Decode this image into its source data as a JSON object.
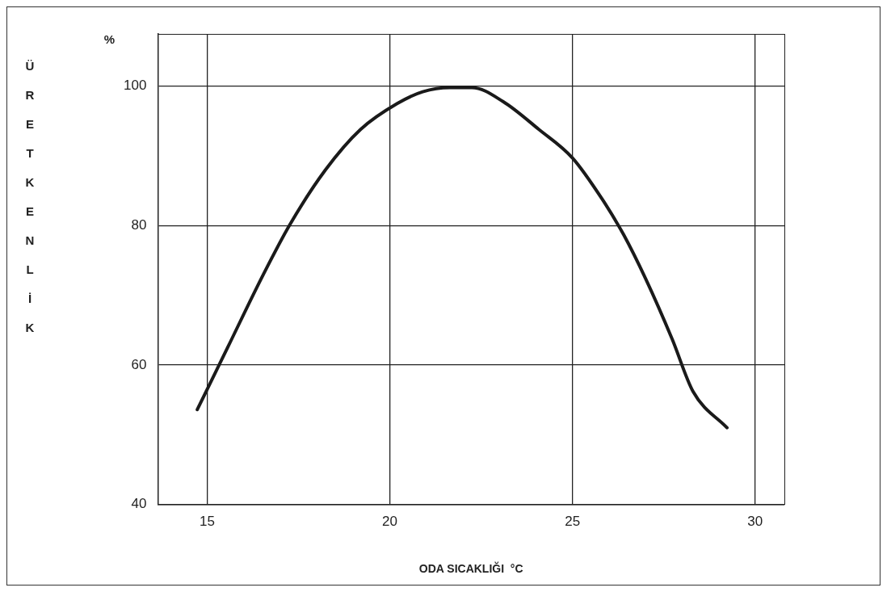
{
  "chart_data": {
    "type": "line",
    "xlabel": "ODA SICAKLIĞI  °C",
    "ylabel": "ÜRETKENLİK",
    "annotations": [
      "%"
    ],
    "series": [
      {
        "color": "#1a1a1a",
        "x": [
          14.73,
          15.56,
          16.53,
          17.26,
          18.24,
          19.2,
          20.2,
          20.9,
          21.64,
          22.25,
          23.1,
          24.08,
          25.0,
          25.8,
          26.4,
          27.0,
          27.73,
          28.3,
          29.23
        ],
        "values": [
          53.6,
          62.5,
          72.9,
          80.1,
          88.0,
          93.8,
          97.5,
          99.2,
          99.8,
          99.8,
          97.8,
          93.8,
          89.7,
          83.9,
          78.7,
          72.4,
          63.7,
          56.2,
          51.0
        ]
      }
    ],
    "xlim": [
      13.65,
      30.8
    ],
    "xticks": [
      15,
      20,
      25,
      30
    ],
    "ylim": [
      40,
      107.5
    ],
    "yticks": [
      40,
      60,
      80,
      100
    ],
    "grid": true,
    "legend": false,
    "marker": "none",
    "line_style": "solid"
  }
}
